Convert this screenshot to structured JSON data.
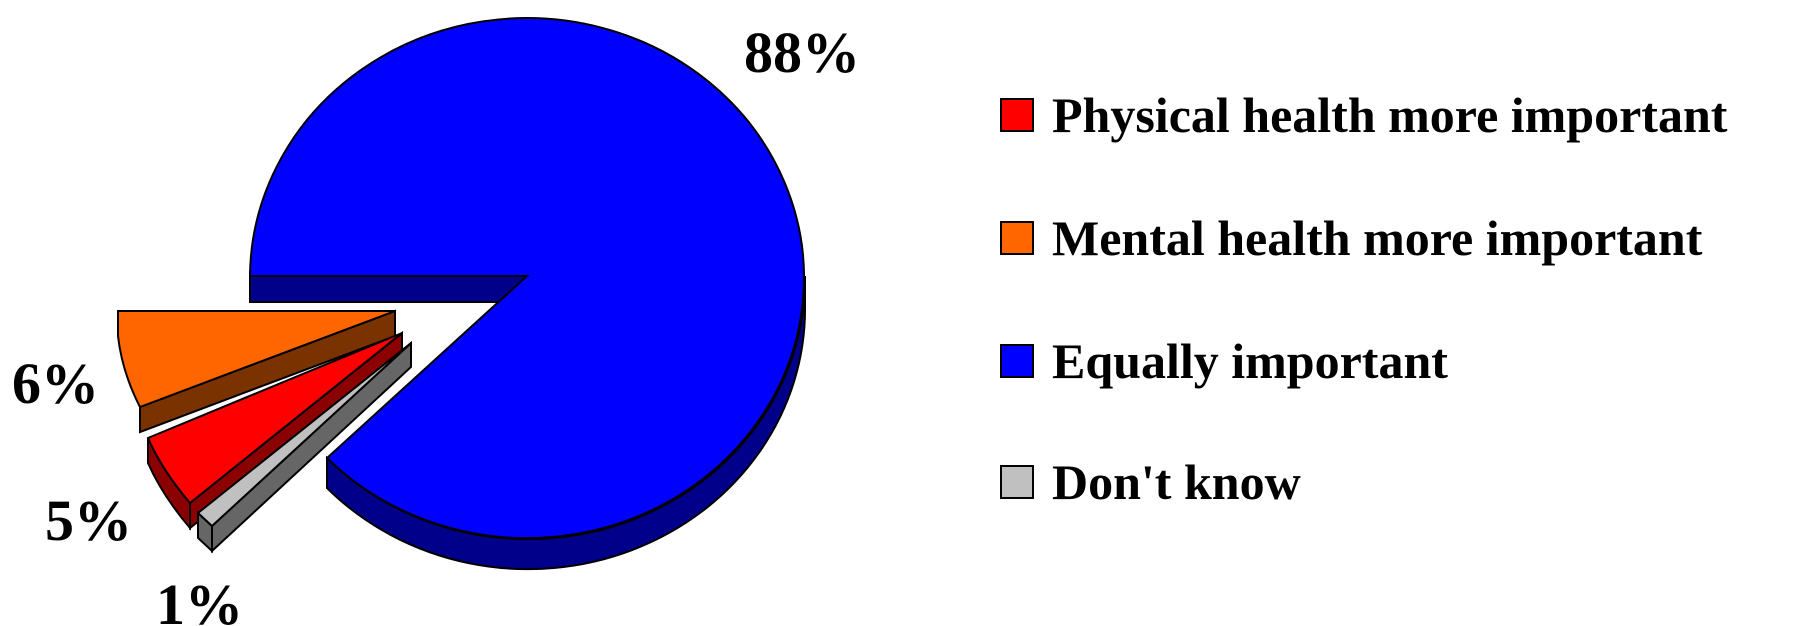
{
  "chart_data": {
    "type": "pie",
    "title": "",
    "slices": [
      {
        "label": "Physical health more important",
        "value": 5,
        "display": "5%",
        "color": "#ff0000",
        "side": "#8b0000"
      },
      {
        "label": "Mental health more important",
        "value": 6,
        "display": "6%",
        "color": "#ff6600",
        "side": "#7a3300"
      },
      {
        "label": "Equally important",
        "value": 88,
        "display": "88%",
        "color": "#0000ff",
        "side": "#00008b"
      },
      {
        "label": "Don't know",
        "value": 1,
        "display": "1%",
        "color": "#c0c0c0",
        "side": "#666666"
      }
    ],
    "legend_position": "right"
  }
}
